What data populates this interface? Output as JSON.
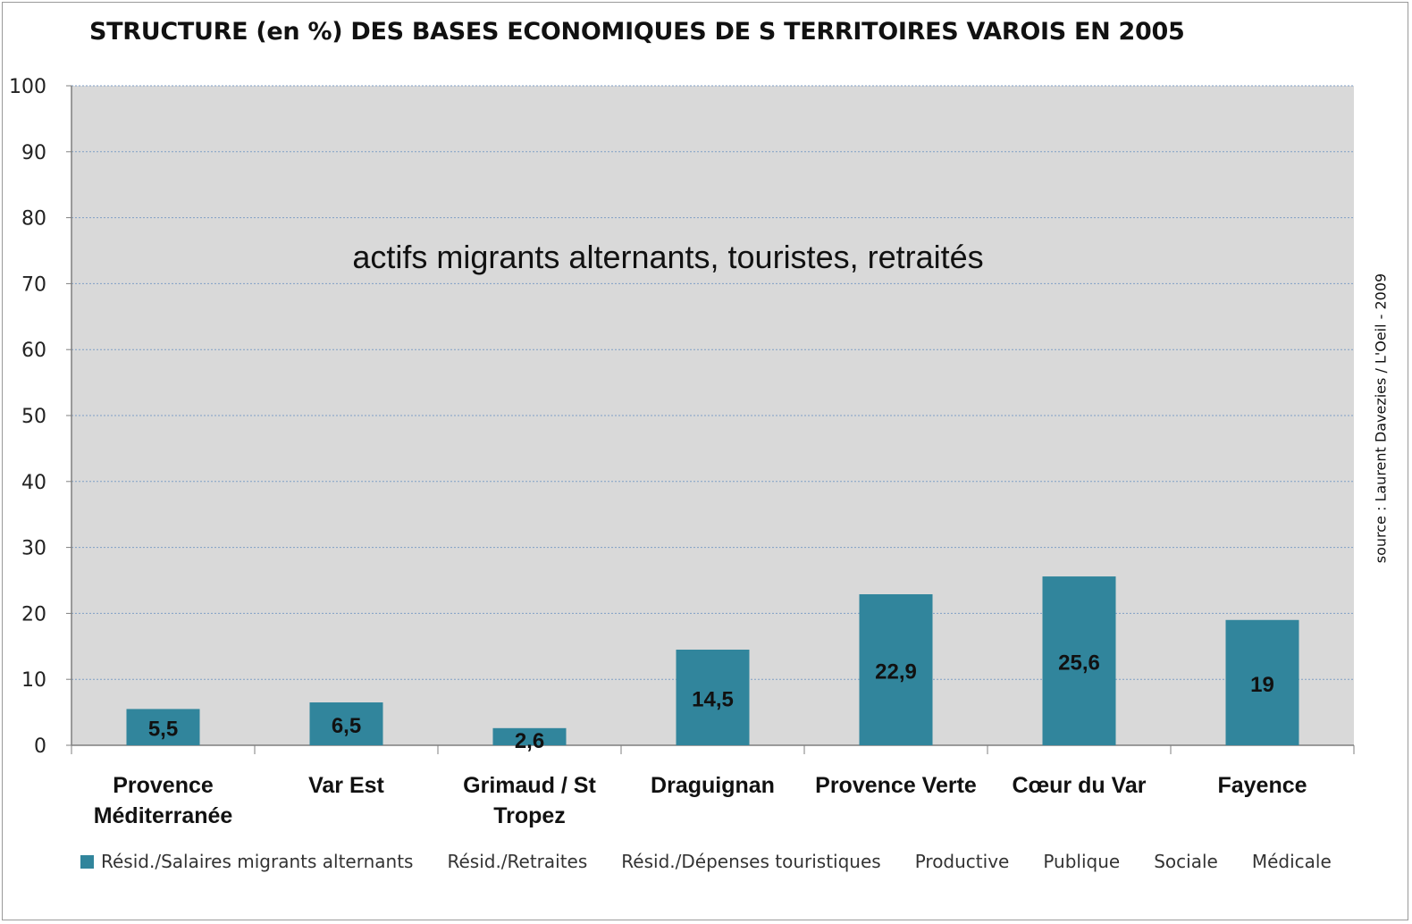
{
  "chart_data": {
    "type": "bar",
    "title": "STRUCTURE (en %) DES BASES ECONOMIQUES DE S TERRITOIRES VAROIS EN 2005",
    "annotation": "actifs migrants alternants, touristes, retraités",
    "source": "source : Laurent Davezies / L'Oeil - 2009",
    "categories": [
      [
        "Provence",
        "Méditerranée"
      ],
      [
        "Var Est"
      ],
      [
        "Grimaud / St",
        "Tropez"
      ],
      [
        "Draguignan"
      ],
      [
        "Provence Verte"
      ],
      [
        "Cœur du Var"
      ],
      [
        "Fayence"
      ]
    ],
    "series": [
      {
        "name": "Résid./Salaires migrants alternants",
        "values": [
          5.5,
          6.5,
          2.6,
          14.5,
          22.9,
          25.6,
          19
        ],
        "labels": [
          "5,5",
          "6,5",
          "2,6",
          "14,5",
          "22,9",
          "25,6",
          "19"
        ]
      }
    ],
    "legend_entries": [
      "Résid./Salaires migrants alternants",
      "Résid./Retraites",
      "Résid./Dépenses touristiques",
      "Productive",
      "Publique",
      "Sociale",
      "Médicale"
    ],
    "yticks": [
      "0",
      "10",
      "20",
      "30",
      "40",
      "50",
      "60",
      "70",
      "80",
      "90",
      "100"
    ],
    "ylim": [
      0,
      100
    ],
    "grid": true,
    "legend_position": "bottom",
    "colors": {
      "bar": "#31859c",
      "plot_bg": "#d9d9d9",
      "grid": "#7f9fc6"
    }
  }
}
